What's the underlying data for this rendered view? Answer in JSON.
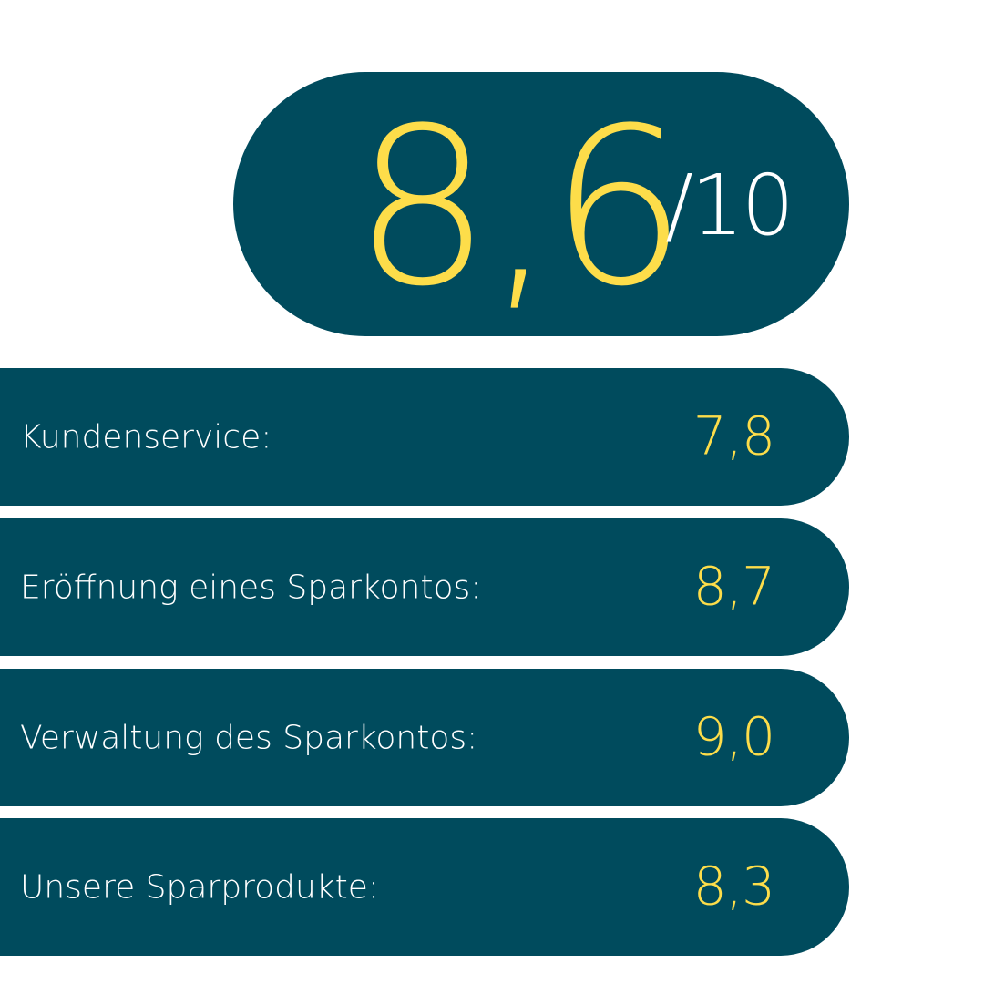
{
  "overall": {
    "score": "8,6",
    "max": "/10"
  },
  "ratings": [
    {
      "label": "Kundenservice:",
      "value": "7,8"
    },
    {
      "label": "Eröffnung eines Sparkontos:",
      "value": "8,7"
    },
    {
      "label": "Verwaltung des Sparkontos:",
      "value": "9,0"
    },
    {
      "label": "Unsere Sparprodukte:",
      "value": "8,3"
    }
  ],
  "colors": {
    "panel": "#004b5d",
    "accent": "#fddd4a",
    "text": "#ffffff",
    "background": "#ffffff"
  }
}
